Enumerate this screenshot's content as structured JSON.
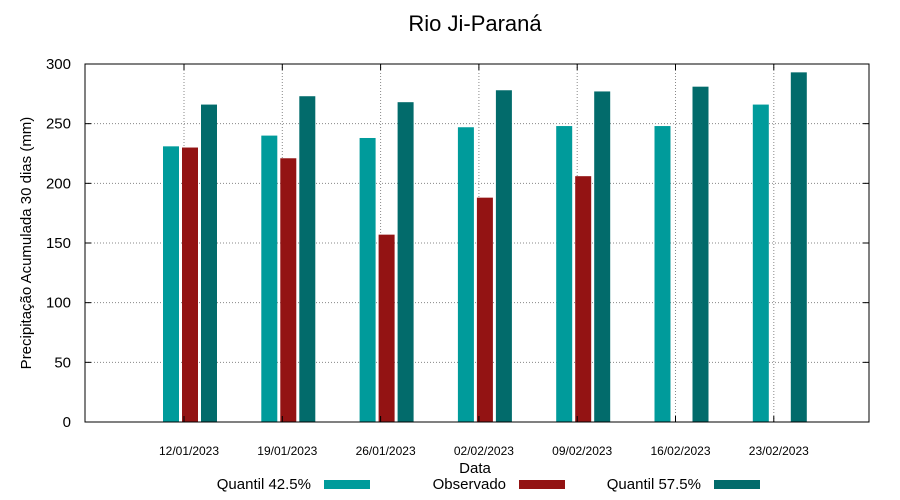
{
  "chart_data": {
    "type": "bar",
    "title": "Rio Ji-Paraná",
    "xlabel": "Data",
    "ylabel": "Precipitação Acumulada 30 dias (mm)",
    "ylim": [
      0,
      300
    ],
    "yticks": [
      0,
      50,
      100,
      150,
      200,
      250,
      300
    ],
    "grid": true,
    "categories": [
      "12/01/2023",
      "19/01/2023",
      "26/01/2023",
      "02/02/2023",
      "09/02/2023",
      "16/02/2023",
      "23/02/2023"
    ],
    "series": [
      {
        "name": "Quantil 42.5%",
        "color": "#009b9b",
        "values": [
          231,
          240,
          238,
          247,
          248,
          248,
          266
        ]
      },
      {
        "name": "Observado",
        "color": "#931313",
        "values": [
          230,
          221,
          157,
          188,
          206,
          null,
          null
        ]
      },
      {
        "name": "Quantil 57.5%",
        "color": "#026b6b",
        "values": [
          266,
          273,
          268,
          278,
          277,
          281,
          293
        ]
      }
    ]
  }
}
